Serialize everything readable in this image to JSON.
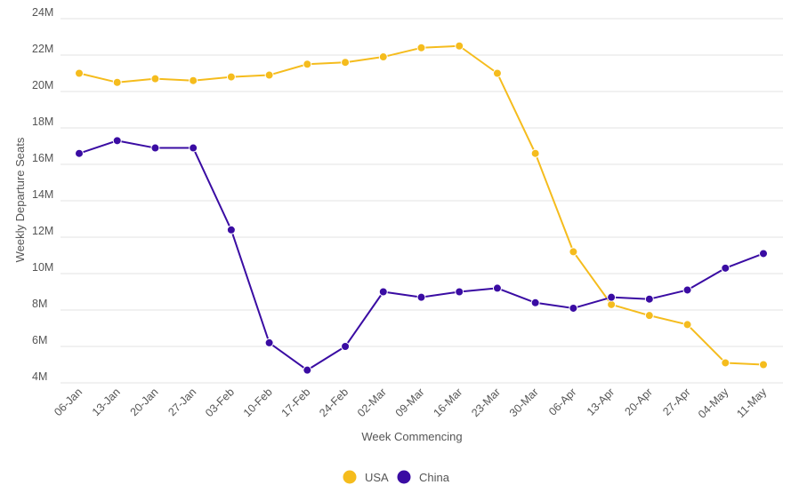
{
  "chart_data": {
    "type": "line",
    "title": "",
    "xlabel": "Week Commencing",
    "ylabel": "Weekly Departure Seats",
    "categories": [
      "06-Jan",
      "13-Jan",
      "20-Jan",
      "27-Jan",
      "03-Feb",
      "10-Feb",
      "17-Feb",
      "24-Feb",
      "02-Mar",
      "09-Mar",
      "16-Mar",
      "23-Mar",
      "30-Mar",
      "06-Apr",
      "13-Apr",
      "20-Apr",
      "27-Apr",
      "04-May",
      "11-May"
    ],
    "ylim": [
      4,
      24
    ],
    "yticks": [
      {
        "value": 4,
        "label": "4M"
      },
      {
        "value": 6,
        "label": "6M"
      },
      {
        "value": 8,
        "label": "8M"
      },
      {
        "value": 10,
        "label": "10M"
      },
      {
        "value": 12,
        "label": "12M"
      },
      {
        "value": 14,
        "label": "14M"
      },
      {
        "value": 16,
        "label": "16M"
      },
      {
        "value": 18,
        "label": "18M"
      },
      {
        "value": 20,
        "label": "20M"
      },
      {
        "value": 22,
        "label": "22M"
      },
      {
        "value": 24,
        "label": "24M"
      }
    ],
    "y_unit": "millions of seats",
    "grid": true,
    "legend_position": "bottom-center",
    "series": [
      {
        "name": "USA",
        "color": "#f5bc1d",
        "values": [
          21.0,
          20.5,
          20.7,
          20.6,
          20.8,
          20.9,
          21.5,
          21.6,
          21.9,
          22.4,
          22.5,
          21.0,
          16.6,
          11.2,
          8.3,
          7.7,
          7.2,
          5.1,
          5.0
        ]
      },
      {
        "name": "China",
        "color": "#3a0ca3",
        "values": [
          16.6,
          17.3,
          16.9,
          16.9,
          12.4,
          6.2,
          4.7,
          6.0,
          9.0,
          8.7,
          9.0,
          9.2,
          8.4,
          8.1,
          8.7,
          8.6,
          9.1,
          10.3,
          11.1
        ]
      }
    ]
  }
}
